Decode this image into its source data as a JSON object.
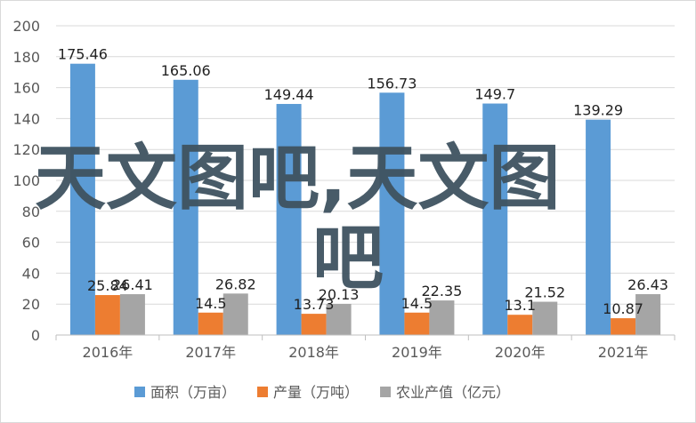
{
  "chart_data": {
    "type": "bar",
    "categories": [
      "2016年",
      "2017年",
      "2018年",
      "2019年",
      "2020年",
      "2021年"
    ],
    "series": [
      {
        "name": "面积（万亩）",
        "values": [
          175.46,
          165.06,
          149.44,
          156.73,
          149.7,
          139.29
        ],
        "color": "#5b9bd5"
      },
      {
        "name": "产量（万吨）",
        "values": [
          25.84,
          14.5,
          13.73,
          14.5,
          13.1,
          10.87
        ],
        "color": "#ed7d31"
      },
      {
        "name": "农业产值（亿元）",
        "values": [
          26.41,
          26.82,
          20.13,
          22.35,
          21.52,
          26.43
        ],
        "color": "#a5a5a5"
      }
    ],
    "value_labels": [
      [
        "175.46",
        "165.06",
        "149.44",
        "156.73",
        "149.7",
        "139.29"
      ],
      [
        "25.84",
        "14.5",
        "13.73",
        "14.5",
        "13.1",
        "10.87"
      ],
      [
        "26.41",
        "26.82",
        "20.13",
        "22.35",
        "21.52",
        "26.43"
      ]
    ],
    "ylim": [
      0,
      200
    ],
    "y_ticks": [
      "0",
      "20",
      "40",
      "60",
      "80",
      "100",
      "120",
      "140",
      "160",
      "180",
      "200"
    ],
    "grid": true,
    "legend_position": "bottom"
  },
  "watermark": {
    "line1": "天文图吧,天文图",
    "line2": "吧"
  }
}
